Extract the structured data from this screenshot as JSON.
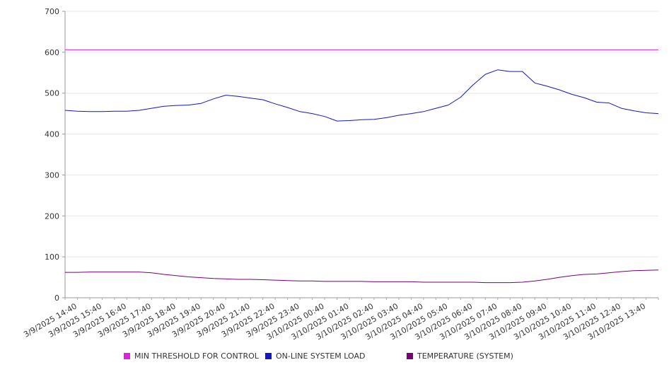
{
  "chart_data": {
    "type": "line",
    "title": "",
    "xlabel": "",
    "ylabel": "",
    "ylim": [
      0,
      700
    ],
    "y_ticks": [
      0,
      100,
      200,
      300,
      400,
      500,
      600,
      700
    ],
    "grid": true,
    "legend_position": "bottom",
    "x_tick_labels": [
      "3/9/2025 14:40",
      "3/9/2025 15:40",
      "3/9/2025 16:40",
      "3/9/2025 17:40",
      "3/9/2025 18:40",
      "3/9/2025 19:40",
      "3/9/2025 20:40",
      "3/9/2025 21:40",
      "3/9/2025 22:40",
      "3/9/2025 23:40",
      "3/10/2025 00:40",
      "3/10/2025 01:40",
      "3/10/2025 02:40",
      "3/10/2025 03:40",
      "3/10/2025 04:40",
      "3/10/2025 05:40",
      "3/10/2025 06:40",
      "3/10/2025 07:40",
      "3/10/2025 08:40",
      "3/10/2025 09:40",
      "3/10/2025 10:40",
      "3/10/2025 11:40",
      "3/10/2025 12:40",
      "3/10/2025 13:40"
    ],
    "x": [
      "3/9/2025 14:10",
      "3/9/2025 14:40",
      "3/9/2025 15:10",
      "3/9/2025 15:40",
      "3/9/2025 16:10",
      "3/9/2025 16:40",
      "3/9/2025 17:10",
      "3/9/2025 17:40",
      "3/9/2025 18:10",
      "3/9/2025 18:40",
      "3/9/2025 19:10",
      "3/9/2025 19:40",
      "3/9/2025 20:10",
      "3/9/2025 20:40",
      "3/9/2025 21:10",
      "3/9/2025 21:40",
      "3/9/2025 22:10",
      "3/9/2025 22:40",
      "3/9/2025 23:10",
      "3/9/2025 23:40",
      "3/10/2025 00:10",
      "3/10/2025 00:40",
      "3/10/2025 01:10",
      "3/10/2025 01:40",
      "3/10/2025 02:10",
      "3/10/2025 02:40",
      "3/10/2025 03:10",
      "3/10/2025 03:40",
      "3/10/2025 04:10",
      "3/10/2025 04:40",
      "3/10/2025 05:10",
      "3/10/2025 05:40",
      "3/10/2025 06:10",
      "3/10/2025 06:40",
      "3/10/2025 07:10",
      "3/10/2025 07:40",
      "3/10/2025 08:10",
      "3/10/2025 08:40",
      "3/10/2025 09:10",
      "3/10/2025 09:40",
      "3/10/2025 10:10",
      "3/10/2025 10:40",
      "3/10/2025 11:10",
      "3/10/2025 11:40",
      "3/10/2025 12:10",
      "3/10/2025 12:40",
      "3/10/2025 13:10",
      "3/10/2025 13:40",
      "3/10/2025 14:10"
    ],
    "series": [
      {
        "name": "MIN THRESHOLD FOR CONTROL",
        "color": "#e020e0",
        "values": [
          606,
          606,
          606,
          606,
          606,
          606,
          606,
          606,
          606,
          606,
          606,
          606,
          606,
          606,
          606,
          606,
          606,
          606,
          606,
          606,
          606,
          606,
          606,
          606,
          606,
          606,
          606,
          606,
          606,
          606,
          606,
          606,
          606,
          606,
          606,
          606,
          606,
          606,
          606,
          606,
          606,
          606,
          606,
          606,
          606,
          606,
          606,
          606,
          606
        ]
      },
      {
        "name": "ON-LINE SYSTEM LOAD",
        "color": "#1515c8",
        "values": [
          458,
          456,
          455,
          455,
          456,
          456,
          458,
          463,
          468,
          470,
          471,
          475,
          486,
          495,
          492,
          488,
          484,
          474,
          465,
          455,
          450,
          443,
          432,
          433,
          435,
          436,
          440,
          446,
          450,
          455,
          463,
          471,
          490,
          520,
          546,
          557,
          553,
          553,
          525,
          517,
          508,
          497,
          489,
          478,
          476,
          463,
          457,
          452,
          450
        ]
      },
      {
        "name": "TEMPERATURE (SYSTEM)",
        "color": "#7a007a",
        "values": [
          62,
          62,
          63,
          63,
          63,
          63,
          63,
          61,
          57,
          54,
          51,
          49,
          47,
          46,
          45,
          45,
          44,
          43,
          42,
          41,
          41,
          40,
          40,
          40,
          40,
          39,
          39,
          39,
          39,
          38,
          38,
          38,
          38,
          38,
          37,
          37,
          37,
          38,
          41,
          45,
          50,
          54,
          57,
          58,
          61,
          64,
          66,
          67,
          68
        ]
      }
    ]
  }
}
